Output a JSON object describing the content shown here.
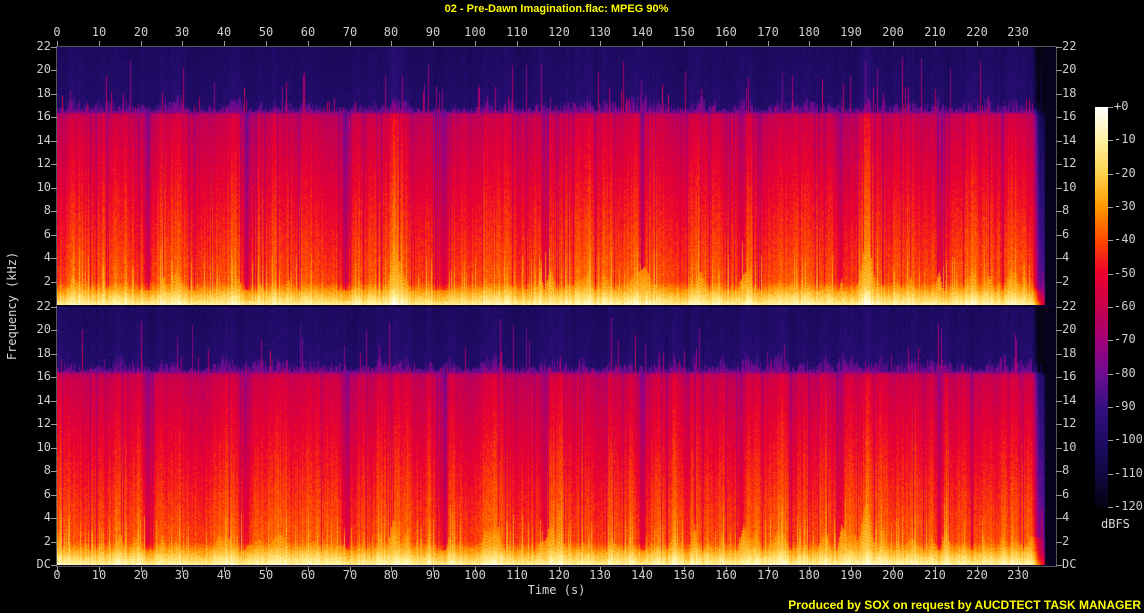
{
  "title": "02 - Pre-Dawn Imagination.flac: MPEG 90%",
  "footer": "Produced by SOX on request by AUCDTECT TASK MANAGER",
  "axes": {
    "time": {
      "label": "Time (s)",
      "ticks": [
        0,
        10,
        20,
        30,
        40,
        50,
        60,
        70,
        80,
        90,
        100,
        110,
        120,
        130,
        140,
        150,
        160,
        170,
        180,
        190,
        200,
        210,
        220,
        230
      ]
    },
    "frequency": {
      "label": "Frequency (kHz)",
      "panel_ticks": [
        "22",
        "20",
        "18",
        "16",
        "14",
        "12",
        "10",
        "8",
        "6",
        "4",
        "2"
      ],
      "dc_label": "DC"
    }
  },
  "colorbar": {
    "unit": "dBFS",
    "labels": [
      "+0",
      "-10",
      "-20",
      "-30",
      "-40",
      "-50",
      "-60",
      "-70",
      "-80",
      "-90",
      "-100",
      "-110",
      "-120"
    ],
    "stops": [
      "#ffffff",
      "#fff3a0",
      "#ffd24f",
      "#ff9800",
      "#ff4a00",
      "#ee0030",
      "#c8004e",
      "#a2007a",
      "#6f0d93",
      "#371083",
      "#1f0c66",
      "#120844",
      "#060314"
    ]
  },
  "colors": {
    "background": "#000000",
    "title_text": "#ffff00",
    "footer_text": "#ffff00",
    "axis_text": "#cfcfcf",
    "tick": "#9c9c9c",
    "frame": "#565656"
  },
  "chart_data": {
    "type": "heatmap",
    "subtype": "spectrogram",
    "title": "02 - Pre-Dawn Imagination.flac: MPEG 90%",
    "channels": [
      "left",
      "right"
    ],
    "duration_s": 239,
    "x_axis": {
      "label": "Time (s)",
      "range": [
        0,
        239
      ],
      "tick_step": 10
    },
    "y_axis": {
      "label": "Frequency (kHz)",
      "range": [
        0,
        22
      ],
      "tick_step": 2,
      "dc_label": "DC"
    },
    "z_axis": {
      "label": "dBFS",
      "range": [
        -120,
        0
      ],
      "tick_step": 10
    },
    "palette_stops_db": [
      0,
      -10,
      -20,
      -30,
      -40,
      -50,
      -60,
      -70,
      -80,
      -90,
      -100,
      -110,
      -120
    ],
    "palette_colors": [
      "#ffffff",
      "#fff3a0",
      "#ffd24f",
      "#ff9800",
      "#ff4a00",
      "#ee0030",
      "#c8004e",
      "#a2007a",
      "#6f0d93",
      "#371083",
      "#1f0c66",
      "#120844",
      "#060314"
    ],
    "lowpass_cutoff_khz": 16.4,
    "band_levels_db": [
      {
        "band_khz": [
          0,
          0.3
        ],
        "level_db": -12
      },
      {
        "band_khz": [
          0.3,
          2
        ],
        "level_db": -24
      },
      {
        "band_khz": [
          2,
          8
        ],
        "level_db": -43
      },
      {
        "band_khz": [
          8,
          16
        ],
        "level_db": -52
      },
      {
        "band_khz": [
          16.4,
          18.5
        ],
        "level_db": -82
      },
      {
        "band_khz": [
          18.5,
          22
        ],
        "level_db": -98
      }
    ],
    "features": {
      "quiet_gap_period_s": 23.7,
      "loud_event_times_s": [
        80.5,
        118,
        193.5
      ],
      "audio_ends_s": 236,
      "spikes_above_cutoff": true
    },
    "legend_position": "right",
    "grid": false
  }
}
